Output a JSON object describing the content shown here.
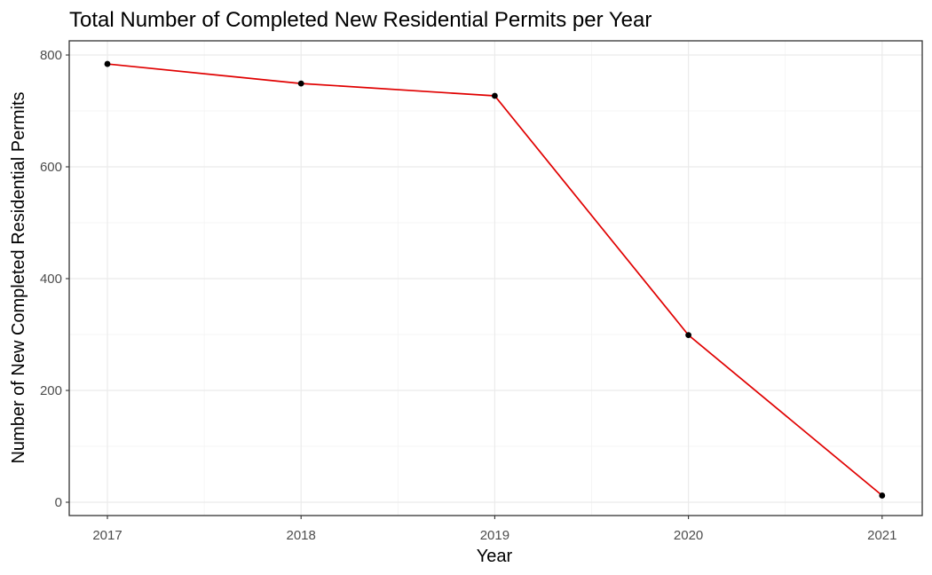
{
  "chart_data": {
    "type": "line",
    "title": "Total Number of Completed New Residential Permits per Year",
    "xlabel": "Year",
    "ylabel": "Number of New Completed Residential Permits",
    "x": [
      "2017",
      "2018",
      "2019",
      "2020",
      "2021"
    ],
    "series": [
      {
        "values": [
          784,
          749,
          727,
          299,
          12
        ]
      }
    ],
    "ylim": [
      0,
      800
    ],
    "yticks": [
      "0",
      "200",
      "400",
      "600",
      "800"
    ],
    "grid": true,
    "legend": "none",
    "colors": {
      "line": "#e00000",
      "points": "#000000",
      "background": "#ffffff",
      "grid": "#ebebeb"
    }
  }
}
